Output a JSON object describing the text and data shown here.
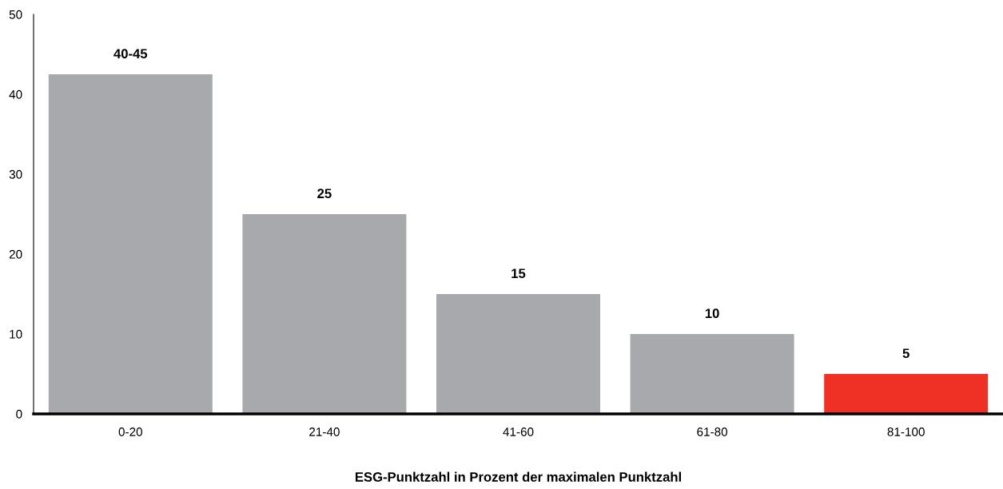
{
  "chart_data": {
    "type": "bar",
    "xlabel": "ESG-Punktzahl in Prozent der maximalen Punktzahl",
    "categories": [
      "0-20",
      "21-40",
      "41-60",
      "61-80",
      "81-100"
    ],
    "values": [
      42.5,
      25,
      15,
      10,
      5
    ],
    "colors": [
      "#a7a9ac",
      "#a7a9ac",
      "#a7a9ac",
      "#a7a9ac",
      "#ee3124"
    ],
    "value_labels": [
      "40-45",
      "25",
      "15",
      "10",
      "5"
    ],
    "ylim": [
      0,
      50
    ],
    "yticks": [
      0,
      10,
      20,
      30,
      40,
      50
    ],
    "grid": false,
    "legend": false
  }
}
